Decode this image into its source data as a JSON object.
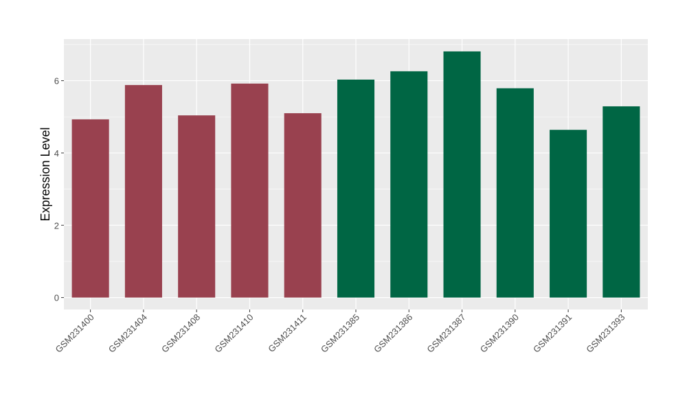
{
  "chart_data": {
    "type": "bar",
    "title": "",
    "xlabel": "",
    "ylabel": "Expression Level",
    "categories": [
      "GSM231400",
      "GSM231404",
      "GSM231408",
      "GSM231410",
      "GSM231411",
      "GSM231385",
      "GSM231386",
      "GSM231387",
      "GSM231390",
      "GSM231391",
      "GSM231393"
    ],
    "values": [
      4.93,
      5.88,
      5.04,
      5.92,
      5.1,
      6.03,
      6.26,
      6.81,
      5.79,
      4.64,
      5.29
    ],
    "bar_colors": [
      "#99414f",
      "#99414f",
      "#99414f",
      "#99414f",
      "#99414f",
      "#006644",
      "#006644",
      "#006644",
      "#006644",
      "#006644",
      "#006644"
    ],
    "ylim": [
      -0.33,
      7.15
    ],
    "yticks": [
      0,
      2,
      4,
      6
    ],
    "grid": true,
    "legend": "none",
    "panel_background": "#ebebeb",
    "grid_color": "#ffffff"
  }
}
